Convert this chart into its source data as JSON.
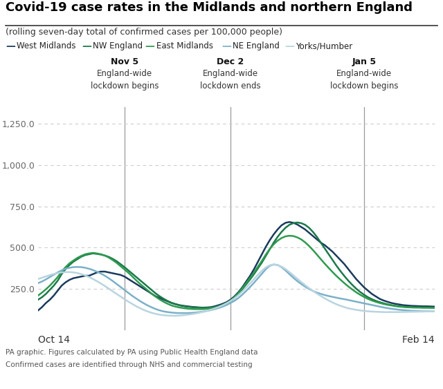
{
  "title": "Covid-19 case rates in the Midlands and northern England",
  "subtitle": "(rolling seven-day total of confirmed cases per 100,000 people)",
  "footer_line1": "PA graphic. Figures calculated by PA using Public Health England data",
  "footer_line2": "Confirmed cases are identified through NHS and commercial testing",
  "xlabel_left": "Oct 14",
  "xlabel_right": "Feb 14",
  "ylim": [
    0,
    1350
  ],
  "yticks": [
    250.0,
    500.0,
    750.0,
    1000.0,
    1250.0
  ],
  "vlines": [
    {
      "x": 22,
      "label_bold": "Nov 5",
      "label1": "England-wide",
      "label2": "lockdown begins"
    },
    {
      "x": 49,
      "label_bold": "Dec 2",
      "label1": "England-wide",
      "label2": "lockdown ends"
    },
    {
      "x": 83,
      "label_bold": "Jan 5",
      "label1": "England-wide",
      "label2": "lockdown begins"
    }
  ],
  "series": [
    {
      "name": "West Midlands",
      "color": "#1a3a5c",
      "lw": 1.8,
      "values": [
        120,
        140,
        165,
        185,
        210,
        240,
        270,
        290,
        305,
        315,
        320,
        325,
        330,
        330,
        340,
        350,
        355,
        355,
        350,
        345,
        340,
        335,
        325,
        310,
        295,
        280,
        265,
        250,
        235,
        220,
        205,
        195,
        185,
        175,
        165,
        158,
        152,
        148,
        145,
        142,
        140,
        138,
        137,
        138,
        140,
        145,
        152,
        160,
        170,
        185,
        205,
        230,
        260,
        295,
        330,
        370,
        415,
        460,
        505,
        545,
        580,
        610,
        635,
        650,
        655,
        650,
        640,
        625,
        610,
        590,
        570,
        550,
        530,
        515,
        495,
        475,
        450,
        425,
        400,
        370,
        340,
        310,
        285,
        260,
        240,
        220,
        205,
        190,
        180,
        172,
        165,
        160,
        156,
        152,
        150,
        148,
        147,
        146,
        145,
        145,
        144,
        143
      ]
    },
    {
      "name": "NW England",
      "color": "#1a7a4a",
      "lw": 1.8,
      "values": [
        185,
        200,
        220,
        245,
        270,
        300,
        340,
        370,
        395,
        415,
        430,
        445,
        455,
        460,
        465,
        462,
        458,
        452,
        444,
        432,
        418,
        400,
        382,
        362,
        342,
        322,
        302,
        282,
        262,
        242,
        222,
        205,
        190,
        177,
        166,
        158,
        151,
        146,
        142,
        140,
        138,
        137,
        136,
        136,
        137,
        140,
        145,
        152,
        162,
        175,
        195,
        220,
        248,
        278,
        308,
        340,
        375,
        410,
        450,
        490,
        530,
        565,
        595,
        620,
        638,
        648,
        652,
        648,
        638,
        620,
        595,
        565,
        530,
        495,
        460,
        425,
        390,
        358,
        328,
        300,
        275,
        252,
        232,
        215,
        200,
        188,
        178,
        170,
        163,
        157,
        152,
        148,
        145,
        143,
        141,
        140,
        139,
        139,
        138,
        138,
        137,
        137
      ]
    },
    {
      "name": "East Midlands",
      "color": "#2d9a4e",
      "lw": 1.8,
      "values": [
        210,
        228,
        248,
        270,
        295,
        322,
        355,
        382,
        405,
        422,
        438,
        450,
        460,
        465,
        468,
        465,
        460,
        452,
        440,
        425,
        408,
        388,
        368,
        348,
        325,
        302,
        280,
        260,
        240,
        220,
        202,
        186,
        172,
        160,
        150,
        143,
        138,
        134,
        131,
        129,
        128,
        128,
        128,
        130,
        133,
        138,
        145,
        154,
        165,
        180,
        200,
        225,
        255,
        285,
        318,
        350,
        385,
        420,
        458,
        492,
        520,
        542,
        558,
        568,
        572,
        570,
        562,
        550,
        532,
        510,
        485,
        458,
        430,
        403,
        377,
        352,
        328,
        306,
        285,
        265,
        247,
        230,
        215,
        202,
        190,
        180,
        172,
        165,
        159,
        154,
        150,
        146,
        143,
        141,
        139,
        138,
        137,
        137,
        136,
        136,
        136,
        135
      ]
    },
    {
      "name": "NE England",
      "color": "#7ab0c8",
      "lw": 1.8,
      "values": [
        285,
        295,
        308,
        322,
        336,
        350,
        362,
        372,
        378,
        382,
        383,
        382,
        378,
        372,
        364,
        354,
        343,
        330,
        315,
        298,
        280,
        262,
        244,
        226,
        208,
        192,
        176,
        162,
        149,
        138,
        128,
        120,
        114,
        110,
        107,
        105,
        104,
        104,
        104,
        105,
        107,
        110,
        113,
        117,
        122,
        128,
        135,
        143,
        153,
        165,
        178,
        195,
        215,
        238,
        262,
        288,
        315,
        342,
        370,
        390,
        398,
        395,
        382,
        362,
        340,
        318,
        298,
        280,
        264,
        250,
        238,
        228,
        220,
        213,
        207,
        202,
        197,
        192,
        188,
        183,
        178,
        173,
        168,
        163,
        158,
        153,
        148,
        143,
        138,
        134,
        130,
        127,
        124,
        122,
        120,
        118,
        117,
        116,
        115,
        115,
        114,
        114
      ]
    },
    {
      "name": "Yorks/Humber",
      "color": "#b8d4e0",
      "lw": 1.8,
      "values": [
        310,
        318,
        326,
        334,
        340,
        346,
        350,
        352,
        352,
        350,
        346,
        340,
        332,
        322,
        310,
        297,
        283,
        268,
        252,
        236,
        220,
        204,
        188,
        173,
        159,
        145,
        133,
        122,
        113,
        105,
        99,
        94,
        91,
        89,
        88,
        88,
        89,
        91,
        94,
        97,
        101,
        106,
        111,
        117,
        124,
        132,
        141,
        151,
        163,
        177,
        193,
        212,
        234,
        258,
        284,
        310,
        336,
        360,
        380,
        393,
        398,
        395,
        385,
        370,
        352,
        332,
        312,
        292,
        273,
        255,
        238,
        222,
        207,
        193,
        180,
        168,
        157,
        148,
        140,
        133,
        128,
        124,
        120,
        117,
        115,
        113,
        112,
        111,
        110,
        110,
        110,
        110,
        110,
        111,
        111,
        112,
        112,
        113,
        113,
        114,
        114,
        114
      ]
    }
  ],
  "n_points": 102,
  "bg_color": "#ffffff",
  "title_color": "#000000",
  "subtitle_color": "#333333",
  "vline_color": "#999999",
  "grid_color": "#cccccc",
  "tick_label_color": "#666666"
}
